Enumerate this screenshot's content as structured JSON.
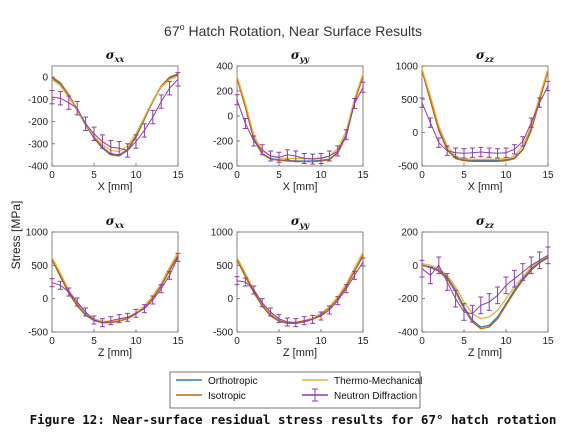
{
  "figure": {
    "title": "67",
    "title_sup": "o",
    "title_rest": " Hatch Rotation, Near Surface Results",
    "ylabel": "Stress [MPa]",
    "caption": "Figure 12: Near-surface residual stress results for 67° hatch rotation",
    "colors": {
      "Orthotropic": "#2e7fb8",
      "Isotropic": "#b5651d",
      "Thermo-Mechanical": "#e8b13c",
      "Neutron Diffraction": "#8a3fa0"
    }
  },
  "legend": {
    "position": "bottom-center",
    "items": [
      "Orthotropic",
      "Thermo-Mechanical",
      "Isotropic",
      "Neutron Diffraction"
    ]
  },
  "chart_data": [
    {
      "type": "line",
      "title": "σxx",
      "title_sym": "σ",
      "title_sub": "xx",
      "xlabel": "X [mm]",
      "xlim": [
        0,
        15
      ],
      "ylim": [
        -400,
        50
      ],
      "xticks": [
        0,
        5,
        10,
        15
      ],
      "yticks": [
        -400,
        -300,
        -200,
        -100,
        0
      ],
      "x": [
        0,
        1,
        2,
        3,
        4,
        5,
        6,
        7,
        8,
        9,
        10,
        11,
        12,
        13,
        14,
        15
      ],
      "series": [
        {
          "name": "Orthotropic",
          "values": [
            -5,
            -30,
            -85,
            -150,
            -215,
            -275,
            -320,
            -350,
            -355,
            -330,
            -270,
            -190,
            -110,
            -45,
            -5,
            10
          ]
        },
        {
          "name": "Isotropic",
          "values": [
            0,
            -25,
            -80,
            -145,
            -210,
            -270,
            -315,
            -345,
            -350,
            -325,
            -265,
            -185,
            -105,
            -40,
            0,
            15
          ]
        },
        {
          "name": "Thermo-Mechanical",
          "values": [
            -10,
            -40,
            -90,
            -150,
            -210,
            -265,
            -305,
            -330,
            -335,
            -310,
            -255,
            -180,
            -105,
            -45,
            -10,
            5
          ]
        }
      ],
      "measured": {
        "name": "Neutron Diffraction",
        "x": [
          0,
          1,
          2,
          3,
          4,
          5,
          6,
          7,
          8,
          9,
          10,
          11,
          12,
          13,
          14,
          15
        ],
        "y": [
          -90,
          -95,
          -115,
          -140,
          -210,
          -255,
          -290,
          -315,
          -320,
          -330,
          -290,
          -240,
          -180,
          -110,
          -50,
          -10
        ],
        "err": 30
      }
    },
    {
      "type": "line",
      "title": "σyy",
      "title_sym": "σ",
      "title_sub": "yy",
      "xlabel": "X [mm]",
      "xlim": [
        0,
        15
      ],
      "ylim": [
        -400,
        400
      ],
      "xticks": [
        0,
        5,
        10,
        15
      ],
      "yticks": [
        -400,
        -200,
        0,
        200,
        400
      ],
      "x": [
        0,
        1,
        2,
        3,
        4,
        5,
        6,
        7,
        8,
        9,
        10,
        11,
        12,
        13,
        14,
        15
      ],
      "series": [
        {
          "name": "Orthotropic",
          "values": [
            310,
            80,
            -180,
            -300,
            -340,
            -350,
            -355,
            -360,
            -360,
            -360,
            -355,
            -345,
            -290,
            -150,
            120,
            330
          ]
        },
        {
          "name": "Isotropic",
          "values": [
            300,
            70,
            -190,
            -305,
            -345,
            -355,
            -360,
            -365,
            -365,
            -365,
            -360,
            -350,
            -295,
            -160,
            110,
            320
          ]
        },
        {
          "name": "Thermo-Mechanical",
          "values": [
            320,
            100,
            -150,
            -280,
            -320,
            -335,
            -340,
            -340,
            -340,
            -340,
            -335,
            -320,
            -260,
            -120,
            140,
            340
          ]
        }
      ],
      "measured": {
        "name": "Neutron Diffraction",
        "x": [
          0,
          1,
          2,
          3,
          4,
          5,
          6,
          7,
          8,
          9,
          10,
          11,
          12,
          13,
          14,
          15
        ],
        "y": [
          130,
          -60,
          -200,
          -270,
          -320,
          -330,
          -310,
          -320,
          -340,
          -345,
          -340,
          -320,
          -280,
          -150,
          100,
          230
        ],
        "err": 40
      }
    },
    {
      "type": "line",
      "title": "σzz",
      "title_sym": "σ",
      "title_sub": "zz",
      "xlabel": "X [mm]",
      "xlim": [
        0,
        15
      ],
      "ylim": [
        -500,
        1000
      ],
      "xticks": [
        0,
        5,
        10,
        15
      ],
      "yticks": [
        -500,
        0,
        500,
        1000
      ],
      "x": [
        0,
        1,
        2,
        3,
        4,
        5,
        6,
        7,
        8,
        9,
        10,
        11,
        12,
        13,
        14,
        15
      ],
      "series": [
        {
          "name": "Orthotropic",
          "values": [
            950,
            500,
            50,
            -250,
            -380,
            -410,
            -420,
            -420,
            -420,
            -420,
            -410,
            -380,
            -250,
            50,
            500,
            950
          ]
        },
        {
          "name": "Isotropic",
          "values": [
            930,
            480,
            30,
            -260,
            -390,
            -420,
            -430,
            -430,
            -430,
            -430,
            -420,
            -390,
            -260,
            30,
            480,
            930
          ]
        },
        {
          "name": "Thermo-Mechanical",
          "values": [
            960,
            550,
            100,
            -200,
            -350,
            -390,
            -400,
            -400,
            -400,
            -400,
            -390,
            -350,
            -200,
            100,
            550,
            960
          ]
        }
      ],
      "measured": {
        "name": "Neutron Diffraction",
        "x": [
          0,
          1,
          2,
          3,
          4,
          5,
          6,
          7,
          8,
          9,
          10,
          11,
          12,
          13,
          14,
          15
        ],
        "y": [
          450,
          150,
          -150,
          -270,
          -300,
          -310,
          -300,
          -290,
          -300,
          -310,
          -300,
          -250,
          -130,
          150,
          450,
          700
        ],
        "err": 70
      }
    },
    {
      "type": "line",
      "title": "σxx",
      "title_sym": "σ",
      "title_sub": "xx",
      "xlabel": "Z [mm]",
      "xlim": [
        0,
        15
      ],
      "ylim": [
        -500,
        1000
      ],
      "xticks": [
        0,
        5,
        10,
        15
      ],
      "yticks": [
        -500,
        0,
        500,
        1000
      ],
      "x": [
        0,
        1,
        2,
        3,
        4,
        5,
        6,
        7,
        8,
        9,
        10,
        11,
        12,
        13,
        14,
        15
      ],
      "series": [
        {
          "name": "Orthotropic",
          "values": [
            600,
            350,
            100,
            -100,
            -240,
            -320,
            -350,
            -350,
            -330,
            -290,
            -220,
            -120,
            20,
            200,
            430,
            650
          ]
        },
        {
          "name": "Isotropic",
          "values": [
            580,
            330,
            80,
            -110,
            -250,
            -330,
            -360,
            -360,
            -340,
            -300,
            -230,
            -130,
            10,
            190,
            420,
            640
          ]
        },
        {
          "name": "Thermo-Mechanical",
          "values": [
            620,
            380,
            130,
            -70,
            -210,
            -300,
            -340,
            -340,
            -320,
            -280,
            -210,
            -110,
            40,
            230,
            470,
            700
          ]
        }
      ],
      "measured": {
        "name": "Neutron Diffraction",
        "x": [
          0,
          1,
          2,
          3,
          4,
          5,
          6,
          7,
          8,
          9,
          10,
          11,
          12,
          13,
          14,
          15
        ],
        "y": [
          240,
          200,
          100,
          -50,
          -200,
          -320,
          -360,
          -330,
          -300,
          -280,
          -220,
          -150,
          -20,
          150,
          350,
          620
        ],
        "err": 60
      }
    },
    {
      "type": "line",
      "title": "σyy",
      "title_sym": "σ",
      "title_sub": "yy",
      "xlabel": "Z [mm]",
      "xlim": [
        0,
        15
      ],
      "ylim": [
        -500,
        1000
      ],
      "xticks": [
        0,
        5,
        10,
        15
      ],
      "yticks": [
        -500,
        0,
        500,
        1000
      ],
      "x": [
        0,
        1,
        2,
        3,
        4,
        5,
        6,
        7,
        8,
        9,
        10,
        11,
        12,
        13,
        14,
        15
      ],
      "series": [
        {
          "name": "Orthotropic",
          "values": [
            600,
            350,
            110,
            -100,
            -250,
            -330,
            -360,
            -360,
            -340,
            -300,
            -230,
            -130,
            10,
            190,
            420,
            650
          ]
        },
        {
          "name": "Isotropic",
          "values": [
            580,
            330,
            90,
            -110,
            -260,
            -340,
            -370,
            -370,
            -350,
            -310,
            -240,
            -140,
            0,
            180,
            410,
            640
          ]
        },
        {
          "name": "Thermo-Mechanical",
          "values": [
            620,
            380,
            140,
            -70,
            -220,
            -310,
            -350,
            -350,
            -330,
            -290,
            -220,
            -120,
            30,
            220,
            460,
            700
          ]
        }
      ],
      "measured": {
        "name": "Neutron Diffraction",
        "x": [
          0,
          1,
          2,
          3,
          4,
          5,
          6,
          7,
          8,
          9,
          10,
          11,
          12,
          13,
          14,
          15
        ],
        "y": [
          270,
          250,
          130,
          -60,
          -200,
          -300,
          -350,
          -360,
          -330,
          -310,
          -260,
          -170,
          -30,
          150,
          350,
          550
        ],
        "err": 60
      }
    },
    {
      "type": "line",
      "title": "σzz",
      "title_sym": "σ",
      "title_sub": "zz",
      "xlabel": "Z [mm]",
      "xlim": [
        0,
        15
      ],
      "ylim": [
        -400,
        200
      ],
      "xticks": [
        0,
        5,
        10,
        15
      ],
      "yticks": [
        -400,
        -200,
        0,
        200
      ],
      "x": [
        0,
        1,
        2,
        3,
        4,
        5,
        6,
        7,
        8,
        9,
        10,
        11,
        12,
        13,
        14,
        15
      ],
      "series": [
        {
          "name": "Orthotropic",
          "values": [
            0,
            -10,
            -30,
            -70,
            -150,
            -250,
            -330,
            -370,
            -360,
            -310,
            -230,
            -150,
            -80,
            -20,
            20,
            50
          ]
        },
        {
          "name": "Isotropic",
          "values": [
            0,
            -15,
            -35,
            -80,
            -160,
            -260,
            -340,
            -380,
            -370,
            -320,
            -240,
            -160,
            -90,
            -30,
            15,
            45
          ]
        },
        {
          "name": "Thermo-Mechanical",
          "values": [
            10,
            0,
            -20,
            -60,
            -130,
            -220,
            -290,
            -320,
            -310,
            -270,
            -200,
            -130,
            -70,
            -10,
            30,
            60
          ]
        }
      ],
      "measured": {
        "name": "Neutron Diffraction",
        "x": [
          0,
          1,
          2,
          3,
          4,
          5,
          6,
          7,
          8,
          9,
          10,
          11,
          12,
          13,
          14,
          15
        ],
        "y": [
          -20,
          -60,
          0,
          -100,
          -200,
          -280,
          -290,
          -240,
          -220,
          -180,
          -120,
          -80,
          -40,
          0,
          30,
          60
        ],
        "err": 50
      }
    }
  ]
}
